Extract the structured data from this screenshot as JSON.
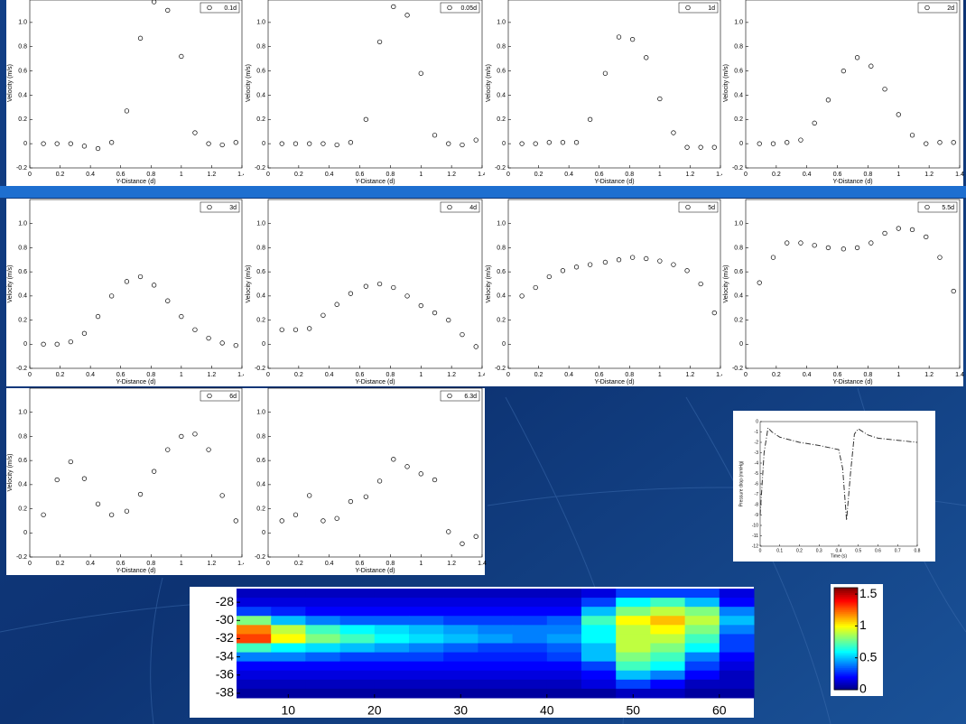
{
  "chart_data": [
    {
      "type": "scatter",
      "x": [
        0.09,
        0.18,
        0.27,
        0.36,
        0.45,
        0.54,
        0.64,
        0.73,
        0.82,
        0.91,
        1.0,
        1.09,
        1.18,
        1.27,
        1.36
      ],
      "series": [
        {
          "name": "0.1d",
          "color": "#000000",
          "values": [
            0,
            0,
            0,
            -0.02,
            -0.04,
            0.01,
            0.27,
            0.87,
            1.17,
            1.1,
            0.72,
            0.09,
            0,
            -0.01,
            0.01
          ]
        }
      ],
      "xlim": [
        0,
        1.4
      ],
      "ylim": [
        -0.2,
        1.2
      ],
      "xticks": [
        0,
        0.2,
        0.4,
        0.6,
        0.8,
        1,
        1.2,
        1.4
      ],
      "yticks": [
        -0.2,
        0,
        0.2,
        0.4,
        0.6,
        0.8,
        {
          "value": 1,
          "label": "1.0"
        }
      ],
      "xlabel": "Y-Distance (d)",
      "ylabel": "Velocity (m/s)"
    },
    {
      "type": "scatter",
      "x": [
        0.09,
        0.18,
        0.27,
        0.36,
        0.45,
        0.54,
        0.64,
        0.73,
        0.82,
        0.91,
        1.0,
        1.09,
        1.18,
        1.27,
        1.36
      ],
      "series": [
        {
          "name": "0.05d",
          "color": "#000000",
          "values": [
            0,
            0,
            0,
            0,
            -0.01,
            0.01,
            0.2,
            0.84,
            1.13,
            1.06,
            0.58,
            0.07,
            0,
            -0.01,
            0.03
          ]
        }
      ],
      "xlim": [
        0,
        1.4
      ],
      "ylim": [
        -0.2,
        1.2
      ],
      "xticks": [
        0,
        0.2,
        0.4,
        0.6,
        0.8,
        1,
        1.2,
        1.4
      ],
      "yticks": [
        -0.2,
        0,
        0.2,
        0.4,
        0.6,
        0.8,
        {
          "value": 1,
          "label": "1.0"
        }
      ],
      "xlabel": "Y-Distance (d)",
      "ylabel": "Velocity (m/s)"
    },
    {
      "type": "scatter",
      "x": [
        0.09,
        0.18,
        0.27,
        0.36,
        0.45,
        0.54,
        0.64,
        0.73,
        0.82,
        0.91,
        1.0,
        1.09,
        1.18,
        1.27,
        1.36
      ],
      "series": [
        {
          "name": "1d",
          "color": "#000000",
          "values": [
            0,
            0,
            0.01,
            0.01,
            0.01,
            0.2,
            0.58,
            0.88,
            0.86,
            0.71,
            0.37,
            0.09,
            -0.03,
            -0.03,
            -0.03
          ]
        }
      ],
      "xlim": [
        0,
        1.4
      ],
      "ylim": [
        -0.2,
        1.2
      ],
      "xticks": [
        0,
        0.2,
        0.4,
        0.6,
        0.8,
        1,
        1.2,
        1.4
      ],
      "yticks": [
        -0.2,
        0,
        0.2,
        0.4,
        0.6,
        0.8,
        {
          "value": 1,
          "label": "1.0"
        }
      ],
      "xlabel": "Y-Distance (d)",
      "ylabel": "Velocity (m/s)"
    },
    {
      "type": "scatter",
      "x": [
        0.09,
        0.18,
        0.27,
        0.36,
        0.45,
        0.54,
        0.64,
        0.73,
        0.82,
        0.91,
        1.0,
        1.09,
        1.18,
        1.27,
        1.36
      ],
      "series": [
        {
          "name": "2d",
          "color": "#000000",
          "values": [
            0,
            0,
            0.01,
            0.03,
            0.17,
            0.36,
            0.6,
            0.71,
            0.64,
            0.45,
            0.24,
            0.07,
            0,
            0.01,
            0.01
          ]
        }
      ],
      "xlim": [
        0,
        1.4
      ],
      "ylim": [
        -0.2,
        1.2
      ],
      "xticks": [
        0,
        0.2,
        0.4,
        0.6,
        0.8,
        1,
        1.2,
        1.4
      ],
      "yticks": [
        -0.2,
        0,
        0.2,
        0.4,
        0.6,
        0.8,
        {
          "value": 1,
          "label": "1.0"
        }
      ],
      "xlabel": "Y-Distance (d)",
      "ylabel": "Velocity (m/s)"
    },
    {
      "type": "scatter",
      "x": [
        0.09,
        0.18,
        0.27,
        0.36,
        0.45,
        0.54,
        0.64,
        0.73,
        0.82,
        0.91,
        1.0,
        1.09,
        1.18,
        1.27,
        1.36
      ],
      "series": [
        {
          "name": "3d",
          "color": "#000000",
          "values": [
            0,
            0,
            0.02,
            0.09,
            0.23,
            0.4,
            0.52,
            0.56,
            0.49,
            0.36,
            0.23,
            0.12,
            0.05,
            0.01,
            -0.01
          ]
        }
      ],
      "xlim": [
        0,
        1.4
      ],
      "ylim": [
        -0.2,
        1.2
      ],
      "xticks": [
        0,
        0.2,
        0.4,
        0.6,
        0.8,
        1,
        1.2,
        1.4
      ],
      "yticks": [
        -0.2,
        0,
        0.2,
        0.4,
        0.6,
        0.8,
        {
          "value": 1,
          "label": "1.0"
        }
      ],
      "xlabel": "Y-Distance (d)",
      "ylabel": "Velocity (m/s)"
    },
    {
      "type": "scatter",
      "x": [
        0.09,
        0.18,
        0.27,
        0.36,
        0.45,
        0.54,
        0.64,
        0.73,
        0.82,
        0.91,
        1.0,
        1.09,
        1.18,
        1.27,
        1.36
      ],
      "series": [
        {
          "name": "4d",
          "color": "#000000",
          "values": [
            0.12,
            0.12,
            0.13,
            0.24,
            0.33,
            0.42,
            0.48,
            0.5,
            0.47,
            0.4,
            0.32,
            0.26,
            0.2,
            0.08,
            -0.02
          ]
        }
      ],
      "xlim": [
        0,
        1.4
      ],
      "ylim": [
        -0.2,
        1.2
      ],
      "xticks": [
        0,
        0.2,
        0.4,
        0.6,
        0.8,
        1,
        1.2,
        1.4
      ],
      "yticks": [
        -0.2,
        0,
        0.2,
        0.4,
        0.6,
        0.8,
        {
          "value": 1,
          "label": "1.0"
        }
      ],
      "xlabel": "Y-Distance (d)",
      "ylabel": "Velocity (m/s)"
    },
    {
      "type": "scatter",
      "x": [
        0.09,
        0.18,
        0.27,
        0.36,
        0.45,
        0.54,
        0.64,
        0.73,
        0.82,
        0.91,
        1.0,
        1.09,
        1.18,
        1.27,
        1.36
      ],
      "series": [
        {
          "name": "5d",
          "color": "#000000",
          "values": [
            0.4,
            0.47,
            0.56,
            0.61,
            0.64,
            0.66,
            0.68,
            0.7,
            0.72,
            0.71,
            0.69,
            0.66,
            0.61,
            0.5,
            0.26
          ]
        }
      ],
      "xlim": [
        0,
        1.4
      ],
      "ylim": [
        -0.2,
        1.2
      ],
      "xticks": [
        0,
        0.2,
        0.4,
        0.6,
        0.8,
        1,
        1.2,
        1.4
      ],
      "yticks": [
        -0.2,
        0,
        0.2,
        0.4,
        0.6,
        0.8,
        {
          "value": 1,
          "label": "1.0"
        }
      ],
      "xlabel": "Y-Distance (d)",
      "ylabel": "Velocity (m/s)"
    },
    {
      "type": "scatter",
      "x": [
        0.09,
        0.18,
        0.27,
        0.36,
        0.45,
        0.54,
        0.64,
        0.73,
        0.82,
        0.91,
        1.0,
        1.09,
        1.18,
        1.27,
        1.36
      ],
      "series": [
        {
          "name": "5.5d",
          "color": "#000000",
          "values": [
            0.51,
            0.72,
            0.84,
            0.84,
            0.82,
            0.8,
            0.79,
            0.8,
            0.84,
            0.92,
            0.96,
            0.95,
            0.89,
            0.72,
            0.44
          ]
        }
      ],
      "xlim": [
        0,
        1.4
      ],
      "ylim": [
        -0.2,
        1.2
      ],
      "xticks": [
        0,
        0.2,
        0.4,
        0.6,
        0.8,
        1,
        1.2,
        1.4
      ],
      "yticks": [
        -0.2,
        0,
        0.2,
        0.4,
        0.6,
        0.8,
        {
          "value": 1,
          "label": "1.0"
        }
      ],
      "xlabel": "Y-Distance (d)",
      "ylabel": "Velocity (m/s)"
    },
    {
      "type": "scatter",
      "x": [
        0.09,
        0.18,
        0.27,
        0.36,
        0.45,
        0.54,
        0.64,
        0.73,
        0.82,
        0.91,
        1.0,
        1.09,
        1.18,
        1.27,
        1.36
      ],
      "series": [
        {
          "name": "6d",
          "color": "#000000",
          "values": [
            0.15,
            0.44,
            0.59,
            0.45,
            0.24,
            0.15,
            0.18,
            0.32,
            0.51,
            0.69,
            0.8,
            0.82,
            0.69,
            0.31,
            0.1
          ]
        }
      ],
      "xlim": [
        0,
        1.4
      ],
      "ylim": [
        -0.2,
        1.2
      ],
      "xticks": [
        0,
        0.2,
        0.4,
        0.6,
        0.8,
        1,
        1.2,
        1.4
      ],
      "yticks": [
        -0.2,
        0,
        0.2,
        0.4,
        0.6,
        0.8,
        {
          "value": 1,
          "label": "1.0"
        }
      ],
      "xlabel": "Y-Distance (d)",
      "ylabel": "Velocity (m/s)"
    },
    {
      "type": "scatter",
      "x": [
        0.09,
        0.18,
        0.27,
        0.36,
        0.45,
        0.54,
        0.64,
        0.73,
        0.82,
        0.91,
        1.0,
        1.09,
        1.18,
        1.27,
        1.36
      ],
      "series": [
        {
          "name": "6.3d",
          "color": "#000000",
          "values": [
            0.1,
            0.15,
            0.31,
            0.1,
            0.12,
            0.26,
            0.3,
            0.43,
            0.61,
            0.55,
            0.49,
            0.44,
            0.01,
            -0.09,
            -0.03
          ]
        }
      ],
      "xlim": [
        0,
        1.4
      ],
      "ylim": [
        -0.2,
        1.2
      ],
      "xticks": [
        0,
        0.2,
        0.4,
        0.6,
        0.8,
        1,
        1.2,
        1.4
      ],
      "yticks": [
        -0.2,
        0,
        0.2,
        0.4,
        0.6,
        0.8,
        {
          "value": 1,
          "label": "1.0"
        }
      ],
      "xlabel": "Y-Distance (d)"
    },
    {
      "type": "line",
      "x": [
        0,
        0.02,
        0.04,
        0.06,
        0.1,
        0.2,
        0.3,
        0.4,
        0.42,
        0.44,
        0.46,
        0.48,
        0.5,
        0.55,
        0.6,
        0.7,
        0.8
      ],
      "series": [
        {
          "color": "#333333",
          "values": [
            -9,
            -3,
            -0.6,
            -1,
            -1.5,
            -2,
            -2.3,
            -2.7,
            -4.5,
            -9.5,
            -5,
            -1.2,
            -0.7,
            -1.3,
            -1.6,
            -1.8,
            -2
          ]
        }
      ],
      "xlim": [
        0,
        0.8
      ],
      "ylim": [
        -12,
        0
      ],
      "xticks": [
        0,
        0.1,
        0.2,
        0.3,
        0.4,
        0.5,
        0.6,
        0.7,
        0.8
      ],
      "yticks": [
        0,
        -1,
        -2,
        -3,
        -4,
        -5,
        -6,
        -7,
        -8,
        -9,
        -10,
        -11,
        -12
      ],
      "xlabel": "Time (s)",
      "ylabel": "Pressure drop (mmHg)"
    },
    {
      "type": "heatmap",
      "x": [
        6,
        10,
        14,
        18,
        22,
        26,
        30,
        34,
        38,
        42,
        46,
        50,
        54,
        58,
        62
      ],
      "y": [
        -27,
        -28,
        -29,
        -30,
        -31,
        -32,
        -33,
        -34,
        -35,
        -36,
        -37,
        -38
      ],
      "z": [
        [
          0.1,
          0.1,
          0.1,
          0.1,
          0.1,
          0.1,
          0.1,
          0.1,
          0.1,
          0.1,
          0.15,
          0.3,
          0.3,
          0.3,
          0.15
        ],
        [
          0.15,
          0.15,
          0.15,
          0.15,
          0.15,
          0.15,
          0.15,
          0.15,
          0.15,
          0.15,
          0.3,
          0.6,
          0.7,
          0.5,
          0.2
        ],
        [
          0.3,
          0.25,
          0.2,
          0.2,
          0.2,
          0.2,
          0.2,
          0.2,
          0.2,
          0.2,
          0.5,
          0.8,
          0.9,
          0.8,
          0.4
        ],
        [
          0.8,
          0.5,
          0.4,
          0.35,
          0.35,
          0.35,
          0.3,
          0.3,
          0.3,
          0.35,
          0.7,
          1.0,
          1.1,
          0.9,
          0.5
        ],
        [
          1.2,
          0.9,
          0.7,
          0.6,
          0.55,
          0.5,
          0.45,
          0.4,
          0.4,
          0.4,
          0.6,
          0.9,
          1.0,
          0.8,
          0.4
        ],
        [
          1.3,
          1.0,
          0.8,
          0.7,
          0.6,
          0.55,
          0.5,
          0.45,
          0.4,
          0.45,
          0.6,
          0.9,
          0.9,
          0.7,
          0.3
        ],
        [
          0.7,
          0.6,
          0.55,
          0.5,
          0.45,
          0.4,
          0.35,
          0.3,
          0.3,
          0.35,
          0.5,
          0.9,
          0.8,
          0.6,
          0.3
        ],
        [
          0.4,
          0.4,
          0.35,
          0.3,
          0.3,
          0.3,
          0.25,
          0.25,
          0.25,
          0.3,
          0.5,
          0.8,
          0.7,
          0.4,
          0.2
        ],
        [
          0.2,
          0.2,
          0.2,
          0.2,
          0.2,
          0.2,
          0.2,
          0.2,
          0.2,
          0.2,
          0.3,
          0.7,
          0.6,
          0.3,
          0.15
        ],
        [
          0.15,
          0.15,
          0.15,
          0.15,
          0.15,
          0.15,
          0.15,
          0.15,
          0.15,
          0.15,
          0.2,
          0.5,
          0.4,
          0.2,
          0.1
        ],
        [
          0.1,
          0.1,
          0.1,
          0.1,
          0.1,
          0.1,
          0.1,
          0.1,
          0.1,
          0.1,
          0.15,
          0.3,
          0.2,
          0.1,
          0.1
        ],
        [
          0.05,
          0.05,
          0.05,
          0.05,
          0.05,
          0.05,
          0.05,
          0.05,
          0.05,
          0.05,
          0.05,
          0.1,
          0.1,
          0.05,
          0.05
        ]
      ],
      "xlim": [
        4,
        64
      ],
      "ylim": [
        -38.5,
        -26.5
      ],
      "xticks": [
        10,
        20,
        30,
        40,
        50,
        60
      ],
      "yticks": [
        -28,
        -30,
        -32,
        -34,
        -36,
        -38
      ],
      "clim": [
        0,
        1.6
      ],
      "cticks": [
        0,
        0.5,
        1,
        1.5
      ]
    }
  ]
}
